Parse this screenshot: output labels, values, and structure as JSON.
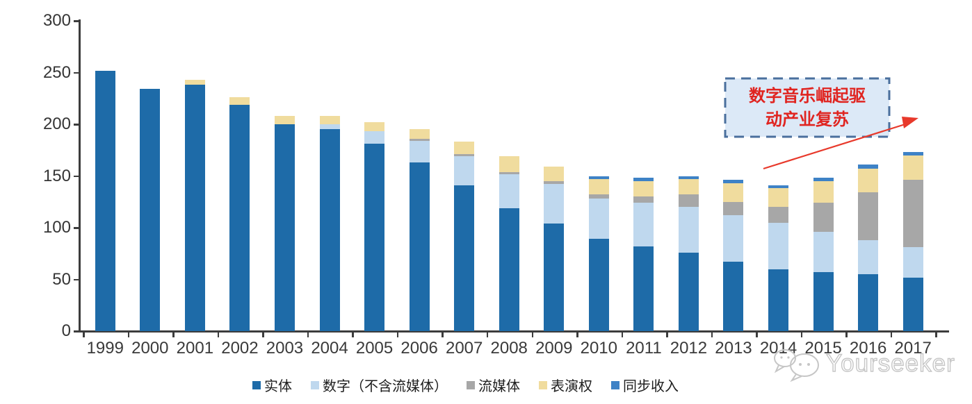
{
  "chart_data": {
    "type": "bar",
    "stacked": true,
    "title": "",
    "xlabel": "",
    "ylabel": "",
    "categories": [
      "1999",
      "2000",
      "2001",
      "2002",
      "2003",
      "2004",
      "2005",
      "2006",
      "2007",
      "2008",
      "2009",
      "2010",
      "2011",
      "2012",
      "2013",
      "2014",
      "2015",
      "2016",
      "2017"
    ],
    "series": [
      {
        "name": "实体",
        "color": "#1E6BA8",
        "values": [
          252,
          234,
          238,
          219,
          200,
          195,
          181,
          163,
          141,
          119,
          104,
          89,
          82,
          76,
          67,
          60,
          57,
          55,
          52
        ]
      },
      {
        "name": "数字（不含流媒体）",
        "color": "#BFD8EE",
        "values": [
          0,
          0,
          0,
          0,
          0,
          5,
          12,
          21,
          28,
          33,
          38,
          39,
          42,
          44,
          45,
          45,
          39,
          33,
          29
        ]
      },
      {
        "name": "流媒体",
        "color": "#A7A7A7",
        "values": [
          0,
          0,
          0,
          0,
          0,
          0,
          0,
          2,
          2,
          2,
          3,
          4,
          6,
          12,
          13,
          15,
          28,
          46,
          65
        ]
      },
      {
        "name": "表演权",
        "color": "#F0DC9E",
        "values": [
          0,
          0,
          5,
          7,
          8,
          8,
          9,
          9,
          12,
          15,
          14,
          15,
          15,
          15,
          18,
          18,
          21,
          23,
          24
        ]
      },
      {
        "name": "同步收入",
        "color": "#3E82C6",
        "values": [
          0,
          0,
          0,
          0,
          0,
          0,
          0,
          0,
          0,
          0,
          0,
          3,
          3,
          3,
          3,
          3,
          3,
          4,
          3
        ]
      }
    ],
    "ylim": [
      0,
      300
    ],
    "yticks": [
      0,
      50,
      100,
      150,
      200,
      250,
      300
    ],
    "grid": false,
    "legend_position": "bottom"
  },
  "annotation": {
    "line1": "数字音乐崛起驱",
    "line2": "动产业复苏",
    "text_color": "#E02420",
    "box_fill": "#DCE9F7",
    "box_border": "#4A6F9D",
    "arrow_color": "#E8392B"
  },
  "watermark": {
    "text": "Yourseeker",
    "icon": "chat-bubbles-icon",
    "color": "#C6C6C6"
  },
  "axis_color": "#3C3C3C"
}
